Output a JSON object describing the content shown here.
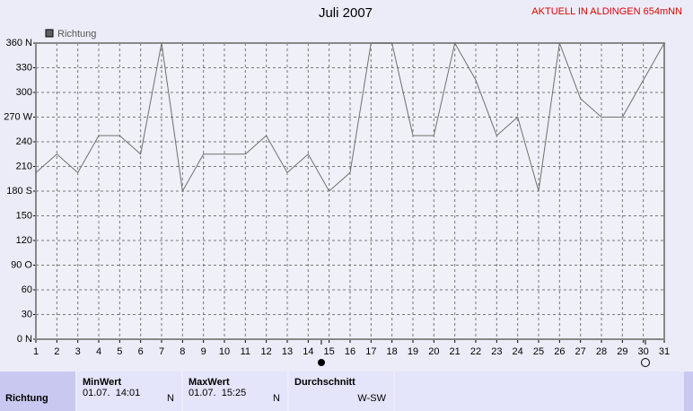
{
  "chart_data": {
    "type": "line",
    "title": "Juli 2007",
    "annotation": "AKTUELL IN ALDINGEN 654mNN",
    "x": [
      1,
      2,
      3,
      4,
      5,
      6,
      7,
      8,
      9,
      10,
      11,
      12,
      13,
      14,
      15,
      16,
      17,
      18,
      19,
      20,
      21,
      22,
      23,
      24,
      25,
      26,
      27,
      28,
      29,
      30,
      31
    ],
    "series": [
      {
        "name": "Richtung",
        "color": "#707070",
        "values": [
          202.5,
          225,
          202.5,
          247.5,
          247.5,
          225,
          360,
          180,
          225,
          225,
          225,
          247.5,
          202.5,
          225,
          180,
          202.5,
          360,
          360,
          247.5,
          247.5,
          360,
          315,
          247.5,
          270,
          180,
          360,
          292.5,
          270,
          270,
          315,
          360
        ]
      }
    ],
    "xlim": [
      1,
      31
    ],
    "xticks": [
      1,
      2,
      3,
      4,
      5,
      6,
      7,
      8,
      9,
      10,
      11,
      12,
      13,
      14,
      15,
      16,
      17,
      18,
      19,
      20,
      21,
      22,
      23,
      24,
      25,
      26,
      27,
      28,
      29,
      30,
      31
    ],
    "ylim": [
      0,
      360
    ],
    "yticks": [
      {
        "value": 0,
        "label": "0 N"
      },
      30,
      60,
      {
        "value": 90,
        "label": "90 O"
      },
      120,
      150,
      {
        "value": 180,
        "label": "180 S"
      },
      210,
      240,
      {
        "value": 270,
        "label": "270 W"
      },
      300,
      330,
      {
        "value": 360,
        "label": "360 N"
      }
    ],
    "grid": true,
    "legend": "top-left"
  },
  "table": {
    "row_label": "Richtung",
    "columns": [
      {
        "header": "MinWert",
        "date": "01.07.  14:01",
        "dir": "N"
      },
      {
        "header": "MaxWert",
        "date": "01.07.  15:25",
        "dir": "N"
      },
      {
        "header": "Durchschnitt",
        "date": "",
        "dir": "W-SW"
      }
    ]
  }
}
